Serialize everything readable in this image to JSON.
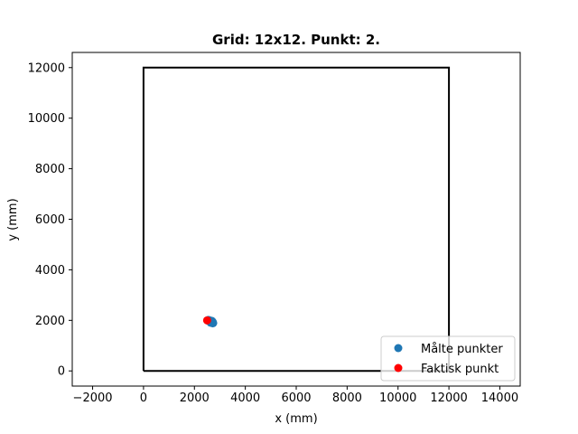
{
  "chart_data": {
    "type": "scatter",
    "title": "Grid: 12x12. Punkt: 2.",
    "xlabel": "x (mm)",
    "ylabel": "y (mm)",
    "xlim": [
      -2800,
      14800
    ],
    "ylim": [
      -600,
      12600
    ],
    "xticks": [
      -2000,
      0,
      2000,
      4000,
      6000,
      8000,
      10000,
      12000,
      14000
    ],
    "yticks": [
      0,
      2000,
      4000,
      6000,
      8000,
      10000,
      12000
    ],
    "xtick_labels": [
      "−2000",
      "0",
      "2000",
      "4000",
      "6000",
      "8000",
      "10000",
      "12000",
      "14000"
    ],
    "ytick_labels": [
      "0",
      "2000",
      "4000",
      "6000",
      "8000",
      "10000",
      "12000"
    ],
    "grid": false,
    "legend_position": "bottom-right",
    "boundary": {
      "color": "#000000",
      "points": [
        [
          0,
          0
        ],
        [
          12000,
          0
        ],
        [
          12000,
          12000
        ],
        [
          0,
          12000
        ],
        [
          0,
          0
        ]
      ]
    },
    "series": [
      {
        "name": "Målte punkter",
        "color": "#1f77b4",
        "points": [
          [
            2650,
            1920
          ],
          [
            2700,
            1930
          ],
          [
            2600,
            1980
          ],
          [
            2680,
            1960
          ],
          [
            2720,
            1900
          ],
          [
            2550,
            2000
          ]
        ]
      },
      {
        "name": "Faktisk punkt",
        "color": "#ff0000",
        "points": [
          [
            2500,
            2000
          ]
        ]
      }
    ]
  }
}
